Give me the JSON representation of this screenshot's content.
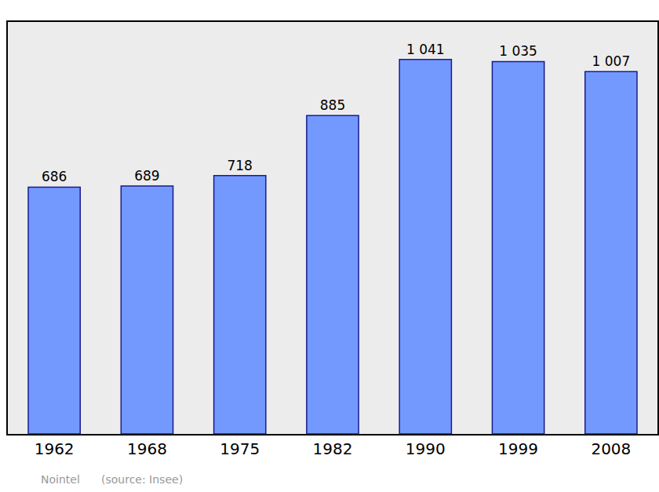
{
  "chart_data": {
    "type": "bar",
    "categories": [
      "1962",
      "1968",
      "1975",
      "1982",
      "1990",
      "1999",
      "2008"
    ],
    "values": [
      686,
      689,
      718,
      885,
      1041,
      1035,
      1007
    ],
    "value_labels": [
      "686",
      "689",
      "718",
      "885",
      "1 041",
      "1 035",
      "1 007"
    ],
    "data_labels": true,
    "color": "#7399ff",
    "ylim": [
      0,
      1145
    ],
    "tick_labels": "x",
    "grid": false,
    "annotations": [
      "Nointel",
      "(source: Insee)"
    ]
  }
}
